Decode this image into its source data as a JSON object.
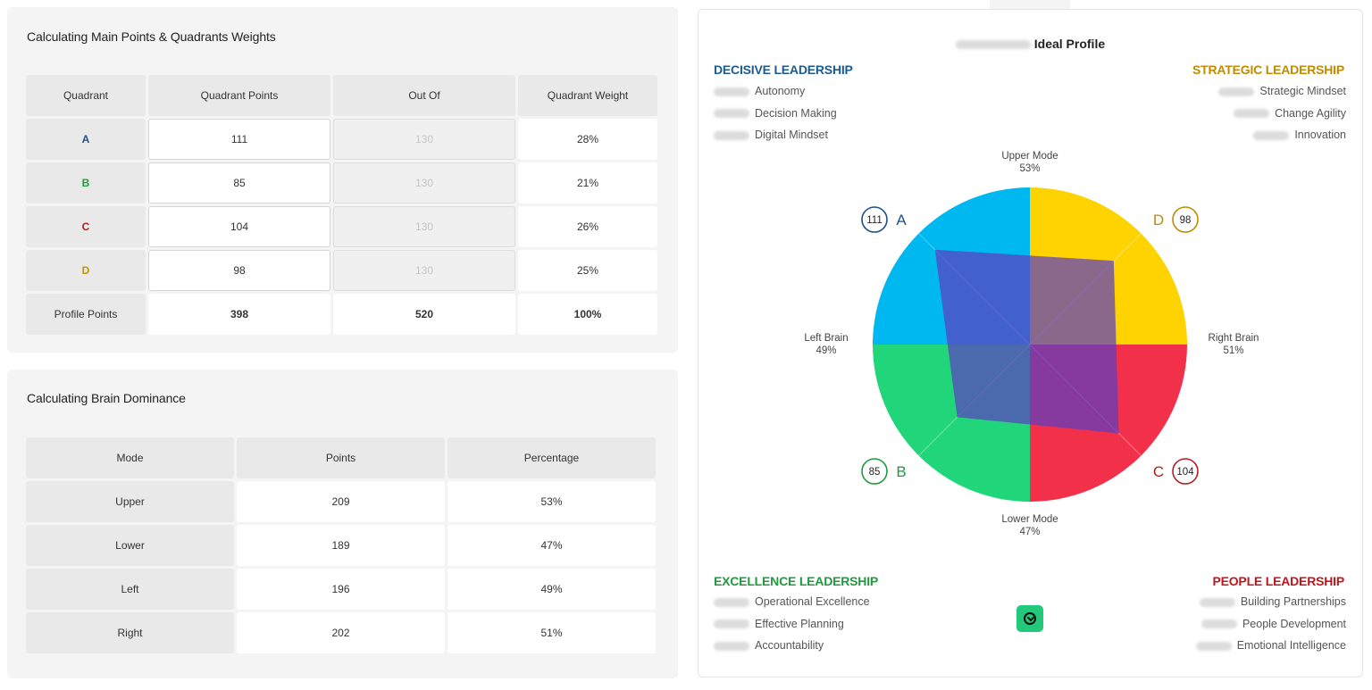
{
  "quadrants_panel": {
    "title": "Calculating Main Points & Quadrants Weights",
    "headers": [
      "Quadrant",
      "Quadrant Points",
      "Out Of",
      "Quadrant Weight"
    ],
    "rows": [
      {
        "quadrant": "A",
        "points": "111",
        "out_of": "130",
        "weight": "28%"
      },
      {
        "quadrant": "B",
        "points": "85",
        "out_of": "130",
        "weight": "21%"
      },
      {
        "quadrant": "C",
        "points": "104",
        "out_of": "130",
        "weight": "26%"
      },
      {
        "quadrant": "D",
        "points": "98",
        "out_of": "130",
        "weight": "25%"
      }
    ],
    "total": {
      "label": "Profile Points",
      "points": "398",
      "out_of": "520",
      "weight": "100%"
    }
  },
  "brain_panel": {
    "title": "Calculating Brain Dominance",
    "headers": [
      "Mode",
      "Points",
      "Percentage"
    ],
    "rows": [
      {
        "mode": "Upper",
        "points": "209",
        "percentage": "53%"
      },
      {
        "mode": "Lower",
        "points": "189",
        "percentage": "47%"
      },
      {
        "mode": "Left",
        "points": "196",
        "percentage": "49%"
      },
      {
        "mode": "Right",
        "points": "202",
        "percentage": "51%"
      }
    ]
  },
  "profile": {
    "title": "Ideal Profile",
    "quadrants": {
      "decisive": {
        "title": "DECISIVE LEADERSHIP",
        "items": [
          "Autonomy",
          "Decision Making",
          "Digital Mindset"
        ]
      },
      "strategic": {
        "title": "STRATEGIC LEADERSHIP",
        "items": [
          "Strategic Mindset",
          "Change Agility",
          "Innovation"
        ]
      },
      "excellence": {
        "title": "EXCELLENCE LEADERSHIP",
        "items": [
          "Operational Excellence",
          "Effective Planning",
          "Accountability"
        ]
      },
      "people": {
        "title": "PEOPLE LEADERSHIP",
        "items": [
          "Building Partnerships",
          "People Development",
          "Emotional Intelligence"
        ]
      }
    },
    "modes": {
      "upper": {
        "label": "Upper Mode",
        "value": "53%"
      },
      "lower": {
        "label": "Lower Mode",
        "value": "47%"
      },
      "left": {
        "label": "Left Brain",
        "value": "49%"
      },
      "right": {
        "label": "Right Brain",
        "value": "51%"
      }
    },
    "badges": {
      "A": {
        "letter": "A",
        "score": "111"
      },
      "B": {
        "letter": "B",
        "score": "85"
      },
      "C": {
        "letter": "C",
        "score": "104"
      },
      "D": {
        "letter": "D",
        "score": "98"
      }
    },
    "download_icon": "download-icon"
  },
  "colors": {
    "A": "#00b8f0",
    "B": "#21d67a",
    "C": "#f2304a",
    "D": "#ffd300",
    "overlay": "#5b3fc0",
    "decisive": "#1d5a91",
    "strategic": "#c08b00",
    "excellence": "#1f9a3e",
    "people": "#c0151c"
  },
  "chart_data": {
    "type": "radar",
    "axes": [
      "A",
      "D",
      "C",
      "B"
    ],
    "max": 130,
    "values": [
      111,
      98,
      104,
      85
    ]
  }
}
